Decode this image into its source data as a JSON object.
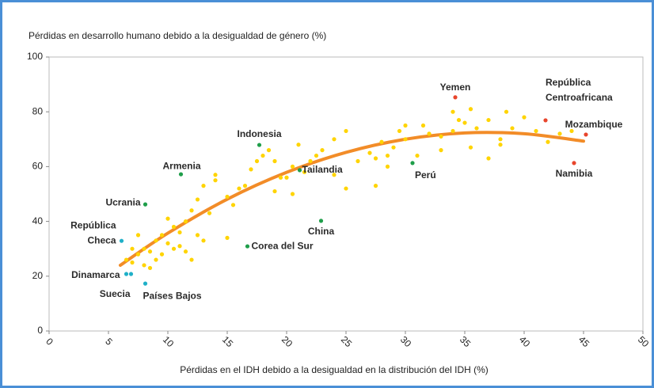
{
  "chart_data": {
    "type": "scatter",
    "title": "Pérdidas en desarrollo humano debido a la desigualdad de género (%)",
    "x_label": "Pérdidas en el IDH debido a la desigualdad en la distribución del IDH (%)",
    "xlim": [
      0,
      50
    ],
    "xticks": [
      0,
      5,
      10,
      15,
      20,
      25,
      30,
      35,
      40,
      45,
      50
    ],
    "ylim": [
      0,
      100
    ],
    "yticks": [
      0,
      20,
      40,
      60,
      80,
      100
    ],
    "grid": false,
    "series": [
      {
        "color": "#ffd400",
        "x": [
          6.5,
          7,
          7,
          7.5,
          7.5,
          8,
          8,
          8.5,
          8.5,
          9,
          9,
          9.5,
          9.5,
          10,
          10,
          10.5,
          10.5,
          11,
          11,
          11.5,
          11.5,
          12,
          12,
          12.5,
          12.5,
          13,
          13,
          13.5,
          14,
          14,
          15,
          15,
          15.5,
          16,
          16.5,
          17,
          17.5,
          18,
          18.5,
          19,
          19,
          19.5,
          20,
          20.5,
          20.5,
          21,
          21.5,
          22,
          22.5,
          23,
          24,
          24,
          25,
          25,
          26,
          27,
          27.5,
          27.5,
          28,
          28.5,
          28.5,
          29,
          29.5,
          30,
          30,
          31,
          31.5,
          32,
          33,
          33,
          34,
          34,
          34.5,
          35,
          35.5,
          35.5,
          36,
          37,
          37,
          38,
          38,
          38.5,
          39,
          40,
          41,
          42,
          43,
          44
        ],
        "values": [
          26,
          25,
          30,
          28,
          35,
          24,
          30,
          23,
          29,
          26,
          33,
          28,
          35,
          32,
          41,
          30,
          38,
          31,
          36,
          29,
          40,
          26,
          44,
          35,
          48,
          33,
          53,
          43,
          57,
          55,
          34,
          49,
          46,
          52,
          53,
          59,
          62,
          64,
          66,
          51,
          62,
          56,
          56,
          60,
          50,
          68,
          58,
          62,
          64,
          66,
          57,
          70,
          52,
          73,
          62,
          65,
          63,
          53,
          69,
          60,
          64,
          67,
          73,
          70,
          75,
          64,
          75,
          72,
          71,
          66,
          73,
          80,
          77,
          76,
          67,
          81,
          74,
          63,
          77,
          70,
          68,
          80,
          74,
          78,
          73,
          69,
          72,
          73
        ]
      },
      {
        "color": "#e8452c",
        "x": [
          34.2,
          41.8,
          45.2,
          44.2
        ],
        "values": [
          85.3,
          76.9,
          71.7,
          61.3
        ],
        "labels": [
          "Yemen",
          [
            "República",
            "Centroafricana"
          ],
          "Mozambique",
          "Namibia"
        ]
      },
      {
        "color": "#1f9e4a",
        "x": [
          17.7,
          11.1,
          21.1,
          30.6,
          8.1,
          22.9,
          16.7
        ],
        "values": [
          67.9,
          57.2,
          58.7,
          61.3,
          46.2,
          40.2,
          30.9
        ],
        "labels": [
          "Indonesia",
          "Armenia",
          "Tailandia",
          "Perú",
          "Ucrania",
          "China",
          "Corea del Sur"
        ]
      },
      {
        "color": "#1fb0c8",
        "x": [
          6.1,
          6.5,
          6.9,
          8.1
        ],
        "values": [
          32.9,
          20.8,
          20.8,
          17.3
        ],
        "labels": [
          [
            "República",
            "Checa"
          ],
          "Dinamarca",
          "Suecia",
          "Países Bajos"
        ]
      }
    ],
    "trend": {
      "color": "#f28c28",
      "x": [
        6,
        10,
        15,
        20,
        25,
        30,
        35,
        40,
        45
      ],
      "values": [
        24.0,
        35.7,
        48.1,
        57.9,
        65.2,
        70.0,
        72.3,
        72.0,
        69.3
      ]
    }
  }
}
